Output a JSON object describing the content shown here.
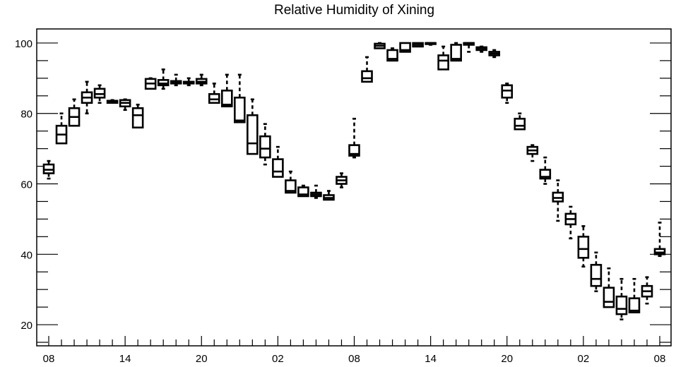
{
  "chart_data": {
    "type": "boxplot",
    "title": "Relative Humidity of Xining",
    "xlabel": "",
    "ylabel": "",
    "ylim": [
      14,
      104
    ],
    "yticks": [
      20,
      40,
      60,
      80,
      100
    ],
    "x_tick_labels": [
      "08",
      "14",
      "20",
      "02",
      "08",
      "14",
      "20",
      "02",
      "08"
    ],
    "x_tick_hours": [
      0,
      6,
      12,
      18,
      24,
      30,
      36,
      42,
      48
    ],
    "grid": false,
    "legend": "none",
    "boxes": [
      {
        "hour": 0,
        "low": 61.5,
        "q1": 63.0,
        "median": 64.0,
        "q3": 65.5,
        "high": 66.5
      },
      {
        "hour": 1,
        "low": 71.5,
        "q1": 71.5,
        "median": 74.0,
        "q3": 76.5,
        "high": 80.0
      },
      {
        "hour": 2,
        "low": 76.5,
        "q1": 76.5,
        "median": 79.0,
        "q3": 81.5,
        "high": 84.0
      },
      {
        "hour": 3,
        "low": 80.0,
        "q1": 83.0,
        "median": 84.5,
        "q3": 86.0,
        "high": 89.0
      },
      {
        "hour": 4,
        "low": 83.0,
        "q1": 84.5,
        "median": 85.5,
        "q3": 87.0,
        "high": 88.0
      },
      {
        "hour": 5,
        "low": 83.0,
        "q1": 83.0,
        "median": 83.3,
        "q3": 83.6,
        "high": 83.8
      },
      {
        "hour": 6,
        "low": 81.0,
        "q1": 82.0,
        "median": 83.0,
        "q3": 83.8,
        "high": 84.0
      },
      {
        "hour": 7,
        "low": 76.0,
        "q1": 76.0,
        "median": 79.5,
        "q3": 81.5,
        "high": 82.5
      },
      {
        "hour": 8,
        "low": 87.0,
        "q1": 87.0,
        "median": 88.5,
        "q3": 89.8,
        "high": 90.0
      },
      {
        "hour": 9,
        "low": 87.0,
        "q1": 88.0,
        "median": 88.5,
        "q3": 89.5,
        "high": 92.5
      },
      {
        "hour": 10,
        "low": 88.0,
        "q1": 88.5,
        "median": 88.8,
        "q3": 89.2,
        "high": 91.0
      },
      {
        "hour": 11,
        "low": 88.0,
        "q1": 88.5,
        "median": 88.8,
        "q3": 89.0,
        "high": 90.0
      },
      {
        "hour": 12,
        "low": 88.0,
        "q1": 88.5,
        "median": 89.0,
        "q3": 89.8,
        "high": 91.0
      },
      {
        "hour": 13,
        "low": 83.0,
        "q1": 83.0,
        "median": 84.0,
        "q3": 85.5,
        "high": 88.5
      },
      {
        "hour": 14,
        "low": 82.0,
        "q1": 82.0,
        "median": 82.5,
        "q3": 86.5,
        "high": 91.0
      },
      {
        "hour": 15,
        "low": 77.5,
        "q1": 77.5,
        "median": 78.0,
        "q3": 84.5,
        "high": 91.0
      },
      {
        "hour": 16,
        "low": 68.5,
        "q1": 68.5,
        "median": 71.5,
        "q3": 79.5,
        "high": 84.0
      },
      {
        "hour": 17,
        "low": 65.5,
        "q1": 67.5,
        "median": 70.0,
        "q3": 73.5,
        "high": 77.0
      },
      {
        "hour": 18,
        "low": 62.0,
        "q1": 62.0,
        "median": 63.5,
        "q3": 67.0,
        "high": 70.5
      },
      {
        "hour": 19,
        "low": 57.5,
        "q1": 57.5,
        "median": 58.0,
        "q3": 61.0,
        "high": 63.5
      },
      {
        "hour": 20,
        "low": 56.5,
        "q1": 56.5,
        "median": 57.0,
        "q3": 59.0,
        "high": 59.5
      },
      {
        "hour": 21,
        "low": 56.0,
        "q1": 56.5,
        "median": 57.0,
        "q3": 57.5,
        "high": 59.5
      },
      {
        "hour": 22,
        "low": 55.5,
        "q1": 55.5,
        "median": 56.0,
        "q3": 56.8,
        "high": 58.0
      },
      {
        "hour": 23,
        "low": 59.0,
        "q1": 60.0,
        "median": 61.0,
        "q3": 62.0,
        "high": 63.0
      },
      {
        "hour": 24,
        "low": 67.5,
        "q1": 68.0,
        "median": 68.5,
        "q3": 71.0,
        "high": 78.5
      },
      {
        "hour": 25,
        "low": 89.0,
        "q1": 89.0,
        "median": 90.0,
        "q3": 92.0,
        "high": 96.0
      },
      {
        "hour": 26,
        "low": 98.5,
        "q1": 98.5,
        "median": 99.2,
        "q3": 99.8,
        "high": 100.0
      },
      {
        "hour": 27,
        "low": 95.0,
        "q1": 95.0,
        "median": 95.5,
        "q3": 98.0,
        "high": 98.5
      },
      {
        "hour": 28,
        "low": 97.5,
        "q1": 97.5,
        "median": 98.0,
        "q3": 100.0,
        "high": 100.0
      },
      {
        "hour": 29,
        "low": 99.0,
        "q1": 99.0,
        "median": 99.5,
        "q3": 100.0,
        "high": 100.0
      },
      {
        "hour": 30,
        "low": 99.5,
        "q1": 99.7,
        "median": 100.0,
        "q3": 100.0,
        "high": 100.0
      },
      {
        "hour": 31,
        "low": 92.5,
        "q1": 92.5,
        "median": 95.0,
        "q3": 96.5,
        "high": 99.0
      },
      {
        "hour": 32,
        "low": 95.0,
        "q1": 95.0,
        "median": 95.5,
        "q3": 99.5,
        "high": 100.0
      },
      {
        "hour": 33,
        "low": 97.5,
        "q1": 99.5,
        "median": 100.0,
        "q3": 100.0,
        "high": 100.0
      },
      {
        "hour": 34,
        "low": 97.5,
        "q1": 98.0,
        "median": 98.5,
        "q3": 98.8,
        "high": 99.0
      },
      {
        "hour": 35,
        "low": 96.0,
        "q1": 96.5,
        "median": 97.0,
        "q3": 97.5,
        "high": 98.0
      },
      {
        "hour": 36,
        "low": 83.0,
        "q1": 84.5,
        "median": 86.5,
        "q3": 88.0,
        "high": 88.5
      },
      {
        "hour": 37,
        "low": 75.5,
        "q1": 75.5,
        "median": 76.5,
        "q3": 78.5,
        "high": 80.0
      },
      {
        "hour": 38,
        "low": 66.5,
        "q1": 68.5,
        "median": 69.5,
        "q3": 70.5,
        "high": 71.0
      },
      {
        "hour": 39,
        "low": 60.0,
        "q1": 61.5,
        "median": 62.0,
        "q3": 64.0,
        "high": 67.5
      },
      {
        "hour": 40,
        "low": 49.5,
        "q1": 55.0,
        "median": 56.0,
        "q3": 57.5,
        "high": 61.0
      },
      {
        "hour": 41,
        "low": 44.5,
        "q1": 48.5,
        "median": 50.0,
        "q3": 51.5,
        "high": 53.5
      },
      {
        "hour": 42,
        "low": 36.5,
        "q1": 39.0,
        "median": 41.5,
        "q3": 45.0,
        "high": 48.0
      },
      {
        "hour": 43,
        "low": 29.5,
        "q1": 31.0,
        "median": 33.0,
        "q3": 37.0,
        "high": 40.5
      },
      {
        "hour": 44,
        "low": 25.0,
        "q1": 25.0,
        "median": 26.5,
        "q3": 30.5,
        "high": 36.0
      },
      {
        "hour": 45,
        "low": 21.5,
        "q1": 23.0,
        "median": 24.5,
        "q3": 28.0,
        "high": 33.0
      },
      {
        "hour": 46,
        "low": 23.5,
        "q1": 23.5,
        "median": 24.0,
        "q3": 27.5,
        "high": 33.0
      },
      {
        "hour": 47,
        "low": 26.0,
        "q1": 28.0,
        "median": 29.5,
        "q3": 31.0,
        "high": 33.5
      },
      {
        "hour": 48,
        "low": 39.5,
        "q1": 40.0,
        "median": 40.5,
        "q3": 41.5,
        "high": 49.0
      }
    ]
  }
}
